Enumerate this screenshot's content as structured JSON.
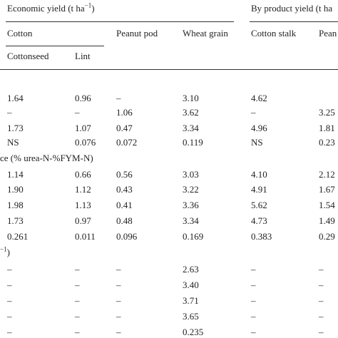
{
  "table": {
    "header": {
      "economic": {
        "text": "Economic yield (t ha",
        "sup": "−1",
        "close": ")"
      },
      "byproduct": "By product yield (t ha",
      "cotton": "Cotton",
      "peanut_pod": "Peanut pod",
      "wheat_grain": "Wheat grain",
      "cotton_stalk": "Cotton stalk",
      "peanut": "Pean",
      "cottonseed": "Cottonseed",
      "lint": "Lint"
    },
    "rows": [
      {
        "cells": [
          "1.64",
          "0.96",
          "–",
          "3.10",
          "4.62"
        ]
      },
      {
        "cells": [
          "–",
          "–",
          "1.06",
          "3.62",
          "–",
          "3.25"
        ]
      },
      {
        "cells": [
          "1.73",
          "1.07",
          "0.47",
          "3.34",
          "4.96",
          "1.81"
        ]
      },
      {
        "cells": [
          "NS",
          "0.076",
          "0.072",
          "0.119",
          "NS",
          "0.23"
        ]
      },
      {
        "label": {
          "text": "ce (% urea-N-%FYM-N)"
        }
      },
      {
        "cells": [
          "1.14",
          "0.66",
          "0.56",
          "3.03",
          "4.10",
          "2.12"
        ]
      },
      {
        "cells": [
          "1.90",
          "1.12",
          "0.43",
          "3.22",
          "4.91",
          "1.67"
        ]
      },
      {
        "cells": [
          "1.98",
          "1.13",
          "0.41",
          "3.36",
          "5.62",
          "1.54"
        ]
      },
      {
        "cells": [
          "1.73",
          "0.97",
          "0.48",
          "3.34",
          "4.73",
          "1.49"
        ]
      },
      {
        "cells": [
          "0.261",
          "0.011",
          "0.096",
          "0.169",
          "0.383",
          "0.29"
        ]
      },
      {
        "label": {
          "sup": "−1",
          "text": ")"
        }
      },
      {
        "cells": [
          "–",
          "–",
          "–",
          "2.63",
          "–",
          "–"
        ]
      },
      {
        "cells": [
          "–",
          "–",
          "–",
          "3.40",
          "–",
          "–"
        ]
      },
      {
        "cells": [
          "–",
          "–",
          "–",
          "3.71",
          "–",
          "–"
        ]
      },
      {
        "cells": [
          "–",
          "–",
          "–",
          "3.65",
          "–",
          "–"
        ]
      },
      {
        "cells": [
          "–",
          "–",
          "–",
          "0.235",
          "–",
          "–"
        ]
      }
    ]
  }
}
